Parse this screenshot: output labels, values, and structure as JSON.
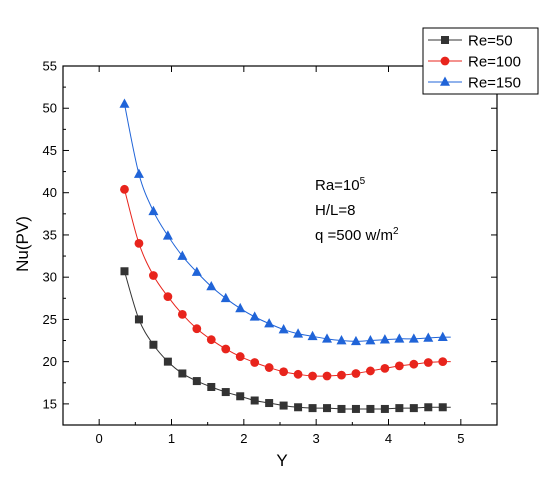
{
  "chart_data": {
    "type": "line",
    "title": "",
    "xlabel": "Y",
    "ylabel": "Nu(PV)",
    "xlim": [
      -0.5,
      5.5
    ],
    "ylim": [
      12.5,
      55
    ],
    "xticks": [
      0,
      1,
      2,
      3,
      4,
      5
    ],
    "yticks": [
      15,
      20,
      25,
      30,
      35,
      40,
      45,
      50,
      55
    ],
    "grid": false,
    "legend_placement": "top-right-outside",
    "annotation": {
      "lines": [
        {
          "base": "Ra=10",
          "sup": "5"
        },
        {
          "base": "H/L=8",
          "sup": ""
        },
        {
          "base": "q =500 w/m",
          "sup": "2"
        }
      ]
    },
    "x": [
      0.35,
      0.55,
      0.75,
      0.95,
      1.15,
      1.35,
      1.55,
      1.75,
      1.95,
      2.15,
      2.35,
      2.55,
      2.75,
      2.95,
      3.15,
      3.35,
      3.55,
      3.75,
      3.95,
      4.15,
      4.35,
      4.55,
      4.75
    ],
    "series": [
      {
        "name": "Re=50",
        "color": "#333333",
        "marker": "square",
        "values": [
          30.7,
          25.0,
          22.0,
          20.0,
          18.6,
          17.7,
          17.0,
          16.4,
          15.9,
          15.4,
          15.1,
          14.8,
          14.6,
          14.5,
          14.5,
          14.4,
          14.4,
          14.4,
          14.4,
          14.5,
          14.5,
          14.6,
          14.6
        ]
      },
      {
        "name": "Re=100",
        "color": "#e8241c",
        "marker": "circle",
        "values": [
          40.4,
          34.0,
          30.2,
          27.7,
          25.6,
          23.9,
          22.6,
          21.5,
          20.6,
          19.9,
          19.3,
          18.8,
          18.5,
          18.3,
          18.3,
          18.4,
          18.6,
          18.9,
          19.2,
          19.5,
          19.7,
          19.9,
          20.0
        ]
      },
      {
        "name": "Re=150",
        "color": "#2064d8",
        "marker": "triangle",
        "values": [
          50.5,
          42.2,
          37.8,
          34.9,
          32.5,
          30.6,
          28.9,
          27.5,
          26.3,
          25.3,
          24.5,
          23.8,
          23.3,
          23.0,
          22.7,
          22.5,
          22.4,
          22.5,
          22.6,
          22.7,
          22.7,
          22.8,
          22.9
        ]
      }
    ]
  }
}
